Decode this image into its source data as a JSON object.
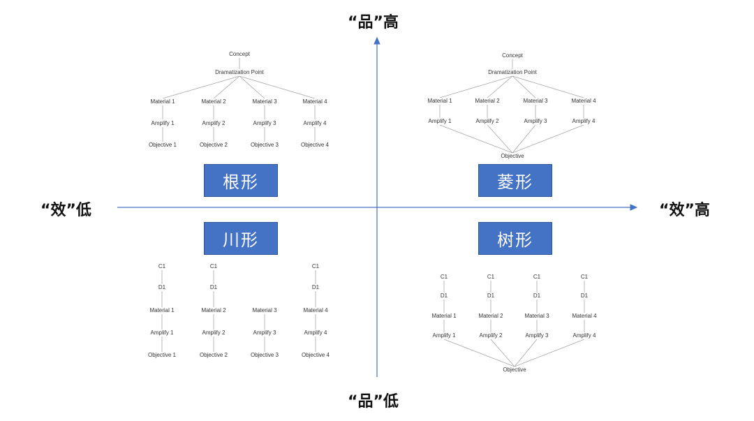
{
  "axes": {
    "top": "“品”高",
    "bottom": "“品”低",
    "left": "“效”低",
    "right": "“效”高"
  },
  "colors": {
    "axis": "#4472c4",
    "box": "#4472c4",
    "connector": "#a6a6a6"
  },
  "quadrants": {
    "top_left": {
      "title": "根形",
      "nodes": {
        "concept": "Concept",
        "dramatization": "Dramatization Point",
        "material": [
          "Material 1",
          "Material 2",
          "Material 3",
          "Material 4"
        ],
        "amplify": [
          "Amplify 1",
          "Amplify 2",
          "Amplify 3",
          "Amplify 4"
        ],
        "objective": [
          "Objective 1",
          "Objective 2",
          "Objective 3",
          "Objective 4"
        ]
      }
    },
    "top_right": {
      "title": "菱形",
      "nodes": {
        "concept": "Concept",
        "dramatization": "Dramatization Point",
        "material": [
          "Material 1",
          "Material 2",
          "Material 3",
          "Material 4"
        ],
        "amplify": [
          "Amplify 1",
          "Amplify 2",
          "Amplify 3",
          "Amplify 4"
        ],
        "objective": "Objective"
      }
    },
    "bottom_left": {
      "title": "川形",
      "nodes": {
        "c": [
          "C1",
          "C1",
          "C1"
        ],
        "d": [
          "D1",
          "D1",
          "D1"
        ],
        "material": [
          "Material 1",
          "Material 2",
          "Material 3",
          "Material 4"
        ],
        "amplify": [
          "Amplify 1",
          "Amplify 2",
          "Amplify 3",
          "Amplify 4"
        ],
        "objective": [
          "Objective 1",
          "Objective 2",
          "Objective 3",
          "Objective 4"
        ]
      }
    },
    "bottom_right": {
      "title": "树形",
      "nodes": {
        "c": [
          "C1",
          "C1",
          "C1",
          "C1"
        ],
        "d": [
          "D1",
          "D1",
          "D1",
          "D1"
        ],
        "material": [
          "Material 1",
          "Material 2",
          "Material 3",
          "Material 4"
        ],
        "amplify": [
          "Amplify 1",
          "Amplify 2",
          "Amplify 3",
          "Amplify 4"
        ],
        "objective": "Objective"
      }
    }
  }
}
